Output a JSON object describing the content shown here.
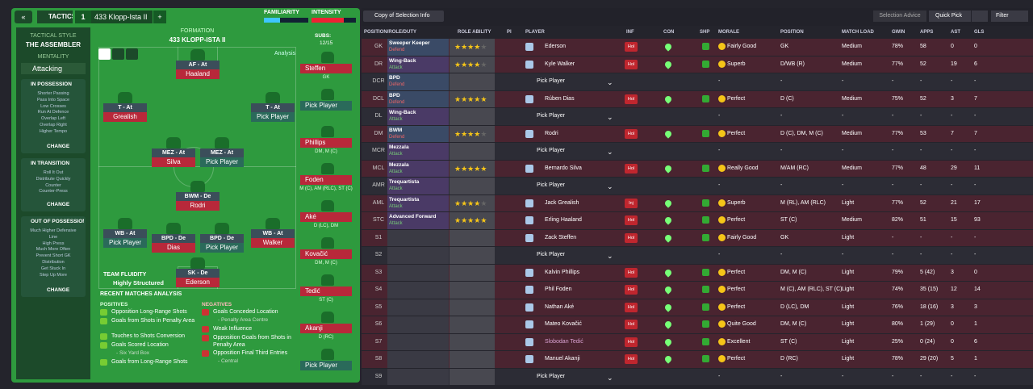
{
  "header": {
    "tactics": "TACTICS",
    "tactic_number": "1",
    "tactic_name": "433 Klopp-Ista II",
    "familiarity": "FAMILIARITY",
    "intensity": "INTENSITY"
  },
  "sidebar": {
    "style_label": "TACTICAL STYLE",
    "style": "THE ASSEMBLER",
    "mentality_label": "MENTALITY",
    "mentality": "Attacking",
    "change": "CHANGE",
    "phases": [
      {
        "title": "IN POSSESSION",
        "items": [
          "Shorter Passing",
          "Pass Into Space",
          "Low Crosses",
          "Run At Defence",
          "Overlap Left",
          "Overlap Right",
          "Higher Tempo"
        ]
      },
      {
        "title": "IN TRANSITION",
        "items": [
          "Roll It Out",
          "Distribute Quickly",
          "Counter",
          "Counter-Press"
        ]
      },
      {
        "title": "OUT OF POSSESSION",
        "items": [
          "Much Higher Defensive",
          "Line",
          "High Press",
          "Much More Often",
          "Prevent Short GK",
          "Distribution",
          "Get Stuck In",
          "Step Up More"
        ]
      }
    ]
  },
  "pitch": {
    "formation_label": "FORMATION",
    "formation": "433 KLOPP-ISTA II",
    "subs_label": "SUBS:",
    "subs_count": "12/15",
    "analysis": "Analysis",
    "players": [
      {
        "role": "AF - At",
        "name": "Haaland"
      },
      {
        "role": "T - At",
        "name": "Grealish"
      },
      {
        "role": "T - At",
        "name": "Pick Player"
      },
      {
        "role": "MEZ - At",
        "name": "Silva"
      },
      {
        "role": "MEZ - At",
        "name": "Pick Player"
      },
      {
        "role": "BWM - De",
        "name": "Rodri"
      },
      {
        "role": "WB - At",
        "name": "Pick Player"
      },
      {
        "role": "BPD - De",
        "name": "Dias"
      },
      {
        "role": "BPD - De",
        "name": "Pick Player"
      },
      {
        "role": "WB - At",
        "name": "Walker"
      },
      {
        "role": "SK - De",
        "name": "Ederson"
      }
    ],
    "subs": [
      {
        "name": "Steffen",
        "position": "GK"
      },
      {
        "name": "Pick Player"
      },
      {
        "name": "Phillips",
        "position": "DM, M (C)"
      },
      {
        "name": "Foden",
        "position": "M (C), AM (RLC), ST (C)"
      },
      {
        "name": "Aké",
        "position": "D (LC), DM"
      },
      {
        "name": "Kovačić",
        "position": "DM, M (C)"
      },
      {
        "name": "Tedić",
        "position": "ST (C)"
      },
      {
        "name": "Akanji",
        "position": "D (RC)"
      },
      {
        "name": "Pick Player"
      }
    ],
    "fluidity_label": "TEAM FLUIDITY",
    "fluidity": "Highly Structured"
  },
  "analysis": {
    "title": "RECENT MATCHES ANALYSIS",
    "positives_label": "POSITIVES",
    "positives": [
      {
        "text": "Opposition Long-Range Shots"
      },
      {
        "text": "Goals from Shots in Penalty Area"
      },
      {
        "text": "Touches to Shots Conversion"
      },
      {
        "text": "Goals Scored Location",
        "detail": "- Six Yard Box"
      },
      {
        "text": "Goals from Long-Range Shots"
      }
    ],
    "negatives_label": "NEGATIVES",
    "negatives": [
      {
        "text": "Goals Conceded Location",
        "detail": "- Penalty Area Centre"
      },
      {
        "text": "Weak Influence"
      },
      {
        "text": "Opposition Goals from Shots in Penalty Area"
      },
      {
        "text": "Opposition Final Third Entries",
        "detail": "- Central"
      }
    ]
  },
  "toolbar": {
    "view": "Copy of Selection Info",
    "selection_advice": "Selection Advice",
    "quick_pick": "Quick Pick",
    "filter": "Filter"
  },
  "table": {
    "headers": [
      "POSITION/ROLE/DUTY",
      "ROLE ABILITY",
      "PI",
      "PLAYER",
      "INF",
      "CON",
      "SHP",
      "MORALE",
      "POSITION",
      "MATCH LOAD",
      "GWIN",
      "APPS",
      "AST",
      "GLS"
    ],
    "rows": [
      {
        "pos": "GK",
        "role": "Sweeper Keeper",
        "duty": "Defend",
        "stars": 3.5,
        "player": "Ederson",
        "inf": "Hol",
        "morale": "Fairly Good",
        "position": "GK",
        "load": "Medium",
        "gwin": "78%",
        "apps": "58",
        "ast": "0",
        "gls": "0"
      },
      {
        "pos": "DR",
        "role": "Wing-Back",
        "duty": "Attack",
        "stars": 3.5,
        "player": "Kyle Walker",
        "inf": "Hol",
        "morale": "Superb",
        "position": "D/WB (R)",
        "load": "Medium",
        "gwin": "77%",
        "apps": "52",
        "ast": "19",
        "gls": "6"
      },
      {
        "pos": "DCR",
        "role": "BPD",
        "duty": "Defend",
        "player": "Pick Player",
        "morale": "-",
        "position": "-",
        "load": "-",
        "gwin": "-",
        "apps": "-",
        "ast": "-",
        "gls": "-"
      },
      {
        "pos": "DCL",
        "role": "BPD",
        "duty": "Defend",
        "stars": 4.5,
        "player": "Rúben Dias",
        "inf": "Hol",
        "morale": "Perfect",
        "position": "D (C)",
        "load": "Medium",
        "gwin": "75%",
        "apps": "52",
        "ast": "3",
        "gls": "7"
      },
      {
        "pos": "DL",
        "role": "Wing-Back",
        "duty": "Attack",
        "player": "Pick Player",
        "morale": "-",
        "position": "-",
        "load": "-",
        "gwin": "-",
        "apps": "-",
        "ast": "-",
        "gls": "-"
      },
      {
        "pos": "DM",
        "role": "BWM",
        "duty": "Defend",
        "stars": 4,
        "player": "Rodri",
        "inf": "Hol",
        "morale": "Perfect",
        "position": "D (C), DM, M (C)",
        "load": "Medium",
        "gwin": "77%",
        "apps": "53",
        "ast": "7",
        "gls": "7"
      },
      {
        "pos": "MCR",
        "role": "Mezzala",
        "duty": "Attack",
        "player": "Pick Player",
        "morale": "-",
        "position": "-",
        "load": "-",
        "gwin": "-",
        "apps": "-",
        "ast": "-",
        "gls": "-"
      },
      {
        "pos": "MCL",
        "role": "Mezzala",
        "duty": "Attack",
        "stars": 4.5,
        "player": "Bernardo Silva",
        "inf": "Hol",
        "morale": "Really Good",
        "position": "M/AM (RC)",
        "load": "Medium",
        "gwin": "77%",
        "apps": "48",
        "ast": "29",
        "gls": "11"
      },
      {
        "pos": "AMR",
        "role": "Trequartista",
        "duty": "Attack",
        "player": "Pick Player",
        "morale": "-",
        "position": "-",
        "load": "-",
        "gwin": "-",
        "apps": "-",
        "ast": "-",
        "gls": "-"
      },
      {
        "pos": "AML",
        "role": "Trequartista",
        "duty": "Attack",
        "stars": 3.5,
        "player": "Jack Grealish",
        "inf": "Inj",
        "morale": "Superb",
        "position": "M (RL), AM (RLC)",
        "load": "Light",
        "gwin": "77%",
        "apps": "52",
        "ast": "21",
        "gls": "17"
      },
      {
        "pos": "STC",
        "role": "Advanced Forward",
        "duty": "Attack",
        "stars": 5,
        "player": "Erling Haaland",
        "inf": "Hol",
        "morale": "Perfect",
        "position": "ST (C)",
        "load": "Medium",
        "gwin": "82%",
        "apps": "51",
        "ast": "15",
        "gls": "93"
      },
      {
        "pos": "S1",
        "player": "Zack Steffen",
        "inf": "Hol",
        "morale": "Fairly Good",
        "position": "GK",
        "load": "Light",
        "gwin": "-",
        "apps": "-",
        "ast": "-",
        "gls": "-"
      },
      {
        "pos": "S2",
        "player": "Pick Player",
        "morale": "-",
        "position": "-",
        "load": "-",
        "gwin": "-",
        "apps": "-",
        "ast": "-",
        "gls": "-"
      },
      {
        "pos": "S3",
        "player": "Kalvin Phillips",
        "inf": "Hol",
        "morale": "Perfect",
        "position": "DM, M (C)",
        "load": "Light",
        "gwin": "79%",
        "apps": "5 (42)",
        "ast": "3",
        "gls": "0"
      },
      {
        "pos": "S4",
        "player": "Phil Foden",
        "inf": "Hol",
        "morale": "Perfect",
        "position": "M (C), AM (RLC), ST (C)",
        "load": "Light",
        "gwin": "74%",
        "apps": "35 (15)",
        "ast": "12",
        "gls": "14"
      },
      {
        "pos": "S5",
        "player": "Nathan Aké",
        "inf": "Hol",
        "morale": "Perfect",
        "position": "D (LC), DM",
        "load": "Light",
        "gwin": "76%",
        "apps": "18 (16)",
        "ast": "3",
        "gls": "3"
      },
      {
        "pos": "S6",
        "player": "Mateo Kovačić",
        "inf": "Hol",
        "morale": "Quite Good",
        "position": "DM, M (C)",
        "load": "Light",
        "gwin": "80%",
        "apps": "1 (29)",
        "ast": "0",
        "gls": "1"
      },
      {
        "pos": "S7",
        "player": "Slobodan Tedić",
        "inf": "Hol",
        "morale": "Excellent",
        "position": "ST (C)",
        "load": "Light",
        "gwin": "25%",
        "apps": "0 (24)",
        "ast": "0",
        "gls": "6"
      },
      {
        "pos": "S8",
        "player": "Manuel Akanji",
        "inf": "Hol",
        "morale": "Perfect",
        "position": "D (RC)",
        "load": "Light",
        "gwin": "78%",
        "apps": "29 (20)",
        "ast": "5",
        "gls": "1"
      },
      {
        "pos": "S9",
        "player": "Pick Player",
        "morale": "-",
        "position": "-",
        "load": "-",
        "gwin": "-",
        "apps": "-",
        "ast": "-",
        "gls": "-"
      }
    ]
  }
}
